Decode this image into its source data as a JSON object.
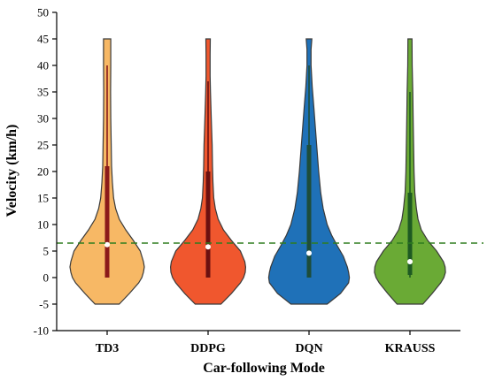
{
  "chart_data": {
    "type": "violin",
    "title": "",
    "xlabel": "Car-following Mode",
    "ylabel": "Velocity (km/h)",
    "ylim": [
      -10,
      50
    ],
    "yticks": [
      -10,
      -5,
      0,
      5,
      10,
      15,
      20,
      25,
      30,
      35,
      40,
      45,
      50
    ],
    "categories": [
      "TD3",
      "DDPG",
      "DQN",
      "KRAUSS"
    ],
    "reference_line": {
      "value": 6.5,
      "color": "#2e7d1e",
      "style": "dashed"
    },
    "series": [
      {
        "category": "TD3",
        "fill": "#f7b865",
        "median": 6.2,
        "q1": 0,
        "q3": 21,
        "whisker_low": 0,
        "whisker_high": 40,
        "box_color": "#8b1a1a",
        "density": [
          [
            -5,
            0.3
          ],
          [
            -3,
            0.55
          ],
          [
            -1,
            0.78
          ],
          [
            0,
            0.86
          ],
          [
            1,
            0.9
          ],
          [
            2,
            0.92
          ],
          [
            3,
            0.9
          ],
          [
            5,
            0.82
          ],
          [
            7,
            0.65
          ],
          [
            9,
            0.46
          ],
          [
            11,
            0.3
          ],
          [
            13,
            0.21
          ],
          [
            15,
            0.16
          ],
          [
            18,
            0.13
          ],
          [
            21,
            0.11
          ],
          [
            25,
            0.1
          ],
          [
            30,
            0.09
          ],
          [
            35,
            0.085
          ],
          [
            40,
            0.09
          ],
          [
            44,
            0.09
          ],
          [
            45,
            0.09
          ]
        ]
      },
      {
        "category": "DDPG",
        "fill": "#f0572e",
        "median": 5.8,
        "q1": 0,
        "q3": 20,
        "whisker_low": 0,
        "whisker_high": 37,
        "box_color": "#6b1010",
        "density": [
          [
            -5,
            0.32
          ],
          [
            -3,
            0.58
          ],
          [
            -1,
            0.8
          ],
          [
            0,
            0.88
          ],
          [
            1,
            0.92
          ],
          [
            2,
            0.93
          ],
          [
            3,
            0.91
          ],
          [
            5,
            0.8
          ],
          [
            7,
            0.58
          ],
          [
            9,
            0.38
          ],
          [
            11,
            0.25
          ],
          [
            13,
            0.18
          ],
          [
            15,
            0.14
          ],
          [
            18,
            0.12
          ],
          [
            21,
            0.11
          ],
          [
            25,
            0.1
          ],
          [
            30,
            0.08
          ],
          [
            35,
            0.06
          ],
          [
            38,
            0.05
          ],
          [
            42,
            0.05
          ],
          [
            45,
            0.055
          ]
        ]
      },
      {
        "category": "DQN",
        "fill": "#1f71b8",
        "median": 4.6,
        "q1": 0,
        "q3": 25,
        "whisker_low": 0,
        "whisker_high": 40,
        "box_color": "#1d4d3a",
        "density": [
          [
            -5,
            0.45
          ],
          [
            -3,
            0.78
          ],
          [
            -1,
            0.98
          ],
          [
            0,
            1.0
          ],
          [
            1,
            0.98
          ],
          [
            2,
            0.95
          ],
          [
            4,
            0.85
          ],
          [
            6,
            0.7
          ],
          [
            8,
            0.56
          ],
          [
            10,
            0.45
          ],
          [
            13,
            0.35
          ],
          [
            16,
            0.29
          ],
          [
            20,
            0.24
          ],
          [
            24,
            0.2
          ],
          [
            28,
            0.16
          ],
          [
            32,
            0.12
          ],
          [
            36,
            0.08
          ],
          [
            40,
            0.05
          ],
          [
            43,
            0.05
          ],
          [
            45,
            0.07
          ]
        ]
      },
      {
        "category": "KRAUSS",
        "fill": "#6aaa35",
        "median": 3.0,
        "q1": 0.5,
        "q3": 16,
        "whisker_low": 0,
        "whisker_high": 35,
        "box_color": "#1e5a22",
        "density": [
          [
            -5,
            0.32
          ],
          [
            -3,
            0.55
          ],
          [
            -1,
            0.76
          ],
          [
            0,
            0.84
          ],
          [
            1,
            0.88
          ],
          [
            2,
            0.87
          ],
          [
            3,
            0.83
          ],
          [
            5,
            0.66
          ],
          [
            7,
            0.44
          ],
          [
            9,
            0.28
          ],
          [
            11,
            0.2
          ],
          [
            13,
            0.16
          ],
          [
            16,
            0.12
          ],
          [
            20,
            0.1
          ],
          [
            25,
            0.09
          ],
          [
            30,
            0.08
          ],
          [
            35,
            0.07
          ],
          [
            40,
            0.055
          ],
          [
            45,
            0.05
          ]
        ]
      }
    ],
    "colors": {
      "axis": "#000000",
      "outline": "#3a3a3a",
      "median_marker": "#ffffff"
    }
  }
}
